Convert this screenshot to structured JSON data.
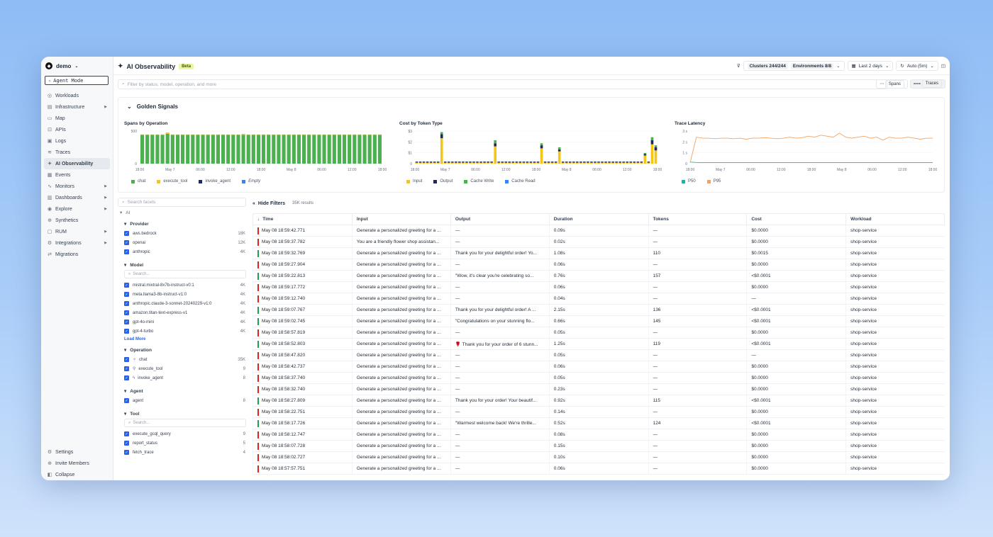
{
  "sidebar": {
    "org": "demo",
    "agent_mode": "Agent Mode",
    "items": [
      {
        "label": "Workloads",
        "icon": "workloads-icon",
        "glyph": "◎"
      },
      {
        "label": "Infrastructure",
        "icon": "infrastructure-icon",
        "glyph": "▤",
        "caret": true
      },
      {
        "label": "Map",
        "icon": "map-icon",
        "glyph": "▭"
      },
      {
        "label": "APIs",
        "icon": "apis-icon",
        "glyph": "⊡"
      },
      {
        "label": "Logs",
        "icon": "logs-icon",
        "glyph": "▣"
      },
      {
        "label": "Traces",
        "icon": "traces-icon",
        "glyph": "≋"
      },
      {
        "label": "AI Observability",
        "icon": "ai-observability-icon",
        "glyph": "✦",
        "active": true
      },
      {
        "label": "Events",
        "icon": "events-icon",
        "glyph": "▦"
      },
      {
        "label": "Monitors",
        "icon": "monitors-icon",
        "glyph": "∿",
        "caret": true
      },
      {
        "label": "Dashboards",
        "icon": "dashboards-icon",
        "glyph": "▥",
        "caret": true
      },
      {
        "label": "Explore",
        "icon": "explore-icon",
        "glyph": "◉",
        "caret": true
      },
      {
        "label": "Synthetics",
        "icon": "synthetics-icon",
        "glyph": "⊕"
      },
      {
        "label": "RUM",
        "icon": "rum-icon",
        "glyph": "▢",
        "caret": true
      },
      {
        "label": "Integrations",
        "icon": "integrations-icon",
        "glyph": "⚙",
        "caret": true
      },
      {
        "label": "Migrations",
        "icon": "migrations-icon",
        "glyph": "⇄"
      }
    ],
    "bottom": [
      {
        "label": "Settings",
        "icon": "settings-icon",
        "glyph": "⚙"
      },
      {
        "label": "Invite Members",
        "icon": "invite-icon",
        "glyph": "⊕"
      },
      {
        "label": "Collapse",
        "icon": "collapse-icon",
        "glyph": "◧"
      }
    ]
  },
  "header": {
    "title": "AI Observability",
    "badge": "Beta",
    "clusters": "Clusters 244/244",
    "environments": "Environments 8/8",
    "range": "Last 2 days",
    "refresh": "Auto (5m)"
  },
  "search": {
    "placeholder": "Filter by status, model, operation, and more"
  },
  "view": {
    "spans": "Spans",
    "traces": "Traces"
  },
  "golden": {
    "title": "Golden Signals",
    "charts": [
      {
        "title": "Spans by Operation",
        "y_ticks": [
          "500",
          "0"
        ],
        "x_ticks": [
          "18:00",
          "May 7",
          "06:00",
          "12:00",
          "18:00",
          "May 8",
          "06:00",
          "12:00",
          "18:00"
        ],
        "legend": [
          {
            "name": "chat",
            "color": "#4caf50"
          },
          {
            "name": "execute_tool",
            "color": "#f5c518"
          },
          {
            "name": "invoke_agent",
            "color": "#1e2a5a"
          },
          {
            "name": "Empty",
            "color": "#3b82f6",
            "italic": true
          }
        ]
      },
      {
        "title": "Cost by Token Type",
        "y_ticks": [
          "$3",
          "$2",
          "$1",
          "0"
        ],
        "x_ticks": [
          "18:00",
          "May 7",
          "06:00",
          "12:00",
          "18:00",
          "May 8",
          "06:00",
          "12:00",
          "18:00"
        ],
        "legend": [
          {
            "name": "Input",
            "color": "#f5c518"
          },
          {
            "name": "Output",
            "color": "#1e2a5a"
          },
          {
            "name": "Cache Write",
            "color": "#4caf50"
          },
          {
            "name": "Cache Read",
            "color": "#3b82f6"
          }
        ]
      },
      {
        "title": "Trace Latency",
        "y_ticks": [
          "3 s",
          "2 s",
          "1 s",
          "0"
        ],
        "x_ticks": [
          "18:00",
          "May 7",
          "06:00",
          "12:00",
          "18:00",
          "May 8",
          "06:00",
          "12:00",
          "18:00"
        ],
        "legend": [
          {
            "name": "P50",
            "color": "#14b8a6"
          },
          {
            "name": "P95",
            "color": "#f4a261"
          }
        ]
      }
    ]
  },
  "chart_data": [
    {
      "type": "bar",
      "title": "Spans by Operation",
      "ylim": [
        0,
        700
      ],
      "stacked": true,
      "series": [
        {
          "name": "chat",
          "values": [
            620,
            620,
            620,
            620,
            620,
            640,
            620,
            620,
            620,
            620,
            620,
            620,
            620,
            620,
            620,
            620,
            620,
            620,
            620,
            620,
            620,
            620,
            620,
            620,
            620,
            620,
            620,
            620,
            620,
            620,
            620,
            620,
            620,
            620,
            620,
            620,
            620,
            620,
            620,
            620,
            620,
            620,
            620,
            620,
            620,
            620,
            620,
            620
          ]
        },
        {
          "name": "execute_tool",
          "values": [
            8,
            8,
            8,
            8,
            8,
            30,
            8,
            8,
            8,
            8,
            8,
            8,
            8,
            8,
            8,
            8,
            8,
            8,
            8,
            8,
            20,
            8,
            8,
            8,
            8,
            8,
            8,
            8,
            8,
            8,
            8,
            8,
            8,
            8,
            8,
            8,
            8,
            8,
            8,
            8,
            8,
            8,
            8,
            8,
            8,
            8,
            8,
            8
          ]
        }
      ]
    },
    {
      "type": "bar",
      "title": "Cost by Token Type",
      "ylim": [
        0,
        3.2
      ],
      "stacked": true,
      "series": [
        {
          "name": "Input",
          "values": [
            0.1,
            0.1,
            0.1,
            0.1,
            0.1,
            0.1,
            0.1,
            2.5,
            0.1,
            0.1,
            0.1,
            0.1,
            0.1,
            0.1,
            0.1,
            0.1,
            0.1,
            0.1,
            0.1,
            0.1,
            0.1,
            0.1,
            1.7,
            0.1,
            0.1,
            0.1,
            0.1,
            0.1,
            0.1,
            0.1,
            0.1,
            0.1,
            0.1,
            0.1,
            0.1,
            1.5,
            0.1,
            0.1,
            0.1,
            0.1,
            1.2,
            0.1,
            0.1,
            0.1,
            0.1,
            0.1,
            0.1,
            0.1,
            0.1,
            0.1,
            0.1,
            0.1,
            0.1,
            0.1,
            0.1,
            0.1,
            0.1,
            0.1,
            0.1,
            0.1,
            0.1,
            0.1,
            0.1,
            0.1,
            0.8,
            0.1,
            1.9,
            1.3
          ]
        },
        {
          "name": "Output",
          "values": [
            0.1,
            0.1,
            0.1,
            0.1,
            0.1,
            0.1,
            0.1,
            0.4,
            0.1,
            0.1,
            0.1,
            0.1,
            0.1,
            0.1,
            0.1,
            0.1,
            0.1,
            0.1,
            0.1,
            0.1,
            0.1,
            0.1,
            0.3,
            0.1,
            0.1,
            0.1,
            0.1,
            0.1,
            0.1,
            0.1,
            0.1,
            0.1,
            0.1,
            0.1,
            0.1,
            0.3,
            0.1,
            0.1,
            0.1,
            0.1,
            0.2,
            0.1,
            0.1,
            0.1,
            0.1,
            0.1,
            0.1,
            0.1,
            0.1,
            0.1,
            0.1,
            0.1,
            0.1,
            0.1,
            0.1,
            0.1,
            0.1,
            0.1,
            0.1,
            0.1,
            0.1,
            0.1,
            0.1,
            0.1,
            0.15,
            0.1,
            0.4,
            0.3
          ]
        },
        {
          "name": "Cache Write",
          "values": [
            0,
            0,
            0,
            0,
            0,
            0,
            0,
            0.2,
            0,
            0,
            0,
            0,
            0,
            0,
            0,
            0,
            0,
            0,
            0,
            0,
            0,
            0,
            0.3,
            0,
            0,
            0,
            0,
            0,
            0,
            0,
            0,
            0,
            0,
            0,
            0,
            0.2,
            0,
            0,
            0,
            0,
            0.2,
            0,
            0,
            0,
            0,
            0,
            0,
            0,
            0,
            0,
            0,
            0,
            0,
            0,
            0,
            0,
            0,
            0,
            0,
            0,
            0,
            0,
            0,
            0,
            0.1,
            0,
            0.3,
            0.2
          ]
        }
      ]
    },
    {
      "type": "line",
      "title": "Trace Latency",
      "ylim": [
        0,
        3.2
      ],
      "series": [
        {
          "name": "P50",
          "values": [
            0.15,
            0.12,
            0.1,
            0.1,
            0.1,
            0.1,
            0.1,
            0.1,
            0.1,
            0.1,
            0.1,
            0.1,
            0.1,
            0.1,
            0.1,
            0.1,
            0.1,
            0.1,
            0.1,
            0.1,
            0.1,
            0.1,
            0.1,
            0.1,
            0.1,
            0.1,
            0.1,
            0.1,
            0.1,
            0.1,
            0.1,
            0.1,
            0.1,
            0.1,
            0.1,
            0.1,
            0.1,
            0.1,
            0.1,
            0.1
          ]
        },
        {
          "name": "P95",
          "values": [
            0.1,
            2.6,
            2.5,
            2.5,
            2.45,
            2.5,
            2.5,
            2.45,
            2.5,
            2.4,
            2.5,
            2.5,
            2.55,
            2.5,
            2.45,
            2.5,
            2.6,
            2.5,
            2.55,
            2.7,
            2.6,
            2.8,
            2.7,
            2.6,
            3.0,
            2.6,
            2.5,
            2.6,
            2.7,
            2.5,
            2.6,
            2.3,
            2.6,
            2.5,
            2.5,
            2.6,
            2.5,
            2.4,
            2.5,
            2.5
          ]
        }
      ]
    }
  ],
  "facets": {
    "search": "Search facets",
    "root": "AI",
    "provider": {
      "title": "Provider",
      "items": [
        {
          "name": "aws.bedrock",
          "count": "18K"
        },
        {
          "name": "openai",
          "count": "12K"
        },
        {
          "name": "anthropic",
          "count": "4K"
        }
      ]
    },
    "model": {
      "title": "Model",
      "search": "Search...",
      "items": [
        {
          "name": "mistral.mixtral-8x7b-instruct-v0:1",
          "count": "4K"
        },
        {
          "name": "meta.llama3-8b-instruct-v1:0",
          "count": "4K"
        },
        {
          "name": "anthropic.claude-3-sonnet-20240229-v1:0",
          "count": "4K"
        },
        {
          "name": "amazon.titan-text-express-v1",
          "count": "4K"
        },
        {
          "name": "gpt-4o-mini",
          "count": "4K"
        },
        {
          "name": "gpt-4-turbo",
          "count": "4K"
        }
      ],
      "load_more": "Load More"
    },
    "operation": {
      "title": "Operation",
      "items": [
        {
          "name": "chat",
          "count": "35K",
          "glyph": "✧"
        },
        {
          "name": "execute_tool",
          "count": "9",
          "glyph": "⚲"
        },
        {
          "name": "invoke_agent",
          "count": "8",
          "glyph": "ϟ"
        }
      ]
    },
    "agent": {
      "title": "Agent",
      "items": [
        {
          "name": "agent",
          "count": "8"
        }
      ]
    },
    "tool": {
      "title": "Tool",
      "search": "Search...",
      "items": [
        {
          "name": "execute_gcql_query",
          "count": "9"
        },
        {
          "name": "report_status",
          "count": "5"
        },
        {
          "name": "fetch_trace",
          "count": "4"
        }
      ]
    }
  },
  "results": {
    "hide_filters": "Hide Filters",
    "count": "35K results",
    "columns": [
      "Time",
      "Input",
      "Output",
      "Duration",
      "Tokens",
      "Cost",
      "Workload"
    ],
    "rows": [
      [
        "May 08 18:59:42.771",
        "Generate a personalized greeting for a ...",
        "—",
        "0.09s",
        "—",
        "$0.0000",
        "shop-service",
        "#dc2626"
      ],
      [
        "May 08 18:59:37.782",
        "You are a friendly flower shop assistan...",
        "—",
        "0.02s",
        "—",
        "$0.0000",
        "shop-service",
        "#dc2626"
      ],
      [
        "May 08 18:59:32.769",
        "Generate a personalized greeting for a ...",
        "Thank you for your delightful order! Yo...",
        "1.08s",
        "110",
        "$0.0015",
        "shop-service",
        "#16a34a"
      ],
      [
        "May 08 18:59:27.904",
        "Generate a personalized greeting for a ...",
        "—",
        "0.06s",
        "—",
        "$0.0000",
        "shop-service",
        "#dc2626"
      ],
      [
        "May 08 18:59:22.813",
        "Generate a personalized greeting for a ...",
        "\"Wow, it's clear you're celebrating so...",
        "0.76s",
        "157",
        "<$0.0001",
        "shop-service",
        "#16a34a"
      ],
      [
        "May 08 18:59:17.772",
        "Generate a personalized greeting for a ...",
        "—",
        "0.06s",
        "—",
        "$0.0000",
        "shop-service",
        "#dc2626"
      ],
      [
        "May 08 18:59:12.740",
        "Generate a personalized greeting for a ...",
        "—",
        "0.04s",
        "—",
        "—",
        "shop-service",
        "#dc2626"
      ],
      [
        "May 08 18:59:07.767",
        "Generate a personalized greeting for a ...",
        "Thank you for your delightful order! A ...",
        "2.15s",
        "136",
        "<$0.0001",
        "shop-service",
        "#16a34a"
      ],
      [
        "May 08 18:59:02.745",
        "Generate a personalized greeting for a ...",
        "\"Congratulations on your stunning flo...",
        "0.66s",
        "145",
        "<$0.0001",
        "shop-service",
        "#16a34a"
      ],
      [
        "May 08 18:58:57.819",
        "Generate a personalized greeting for a ...",
        "—",
        "0.05s",
        "—",
        "$0.0000",
        "shop-service",
        "#dc2626"
      ],
      [
        "May 08 18:58:52.803",
        "Generate a personalized greeting for a ...",
        "🌹 Thank you for your order of 6 stunn...",
        "1.25s",
        "119",
        "<$0.0001",
        "shop-service",
        "#16a34a"
      ],
      [
        "May 08 18:58:47.820",
        "Generate a personalized greeting for a ...",
        "—",
        "0.05s",
        "—",
        "—",
        "shop-service",
        "#dc2626"
      ],
      [
        "May 08 18:58:42.737",
        "Generate a personalized greeting for a ...",
        "—",
        "0.06s",
        "—",
        "$0.0000",
        "shop-service",
        "#dc2626"
      ],
      [
        "May 08 18:58:37.740",
        "Generate a personalized greeting for a ...",
        "—",
        "0.05s",
        "—",
        "$0.0000",
        "shop-service",
        "#dc2626"
      ],
      [
        "May 08 18:58:32.740",
        "Generate a personalized greeting for a ...",
        "—",
        "0.23s",
        "—",
        "$0.0000",
        "shop-service",
        "#dc2626"
      ],
      [
        "May 08 18:58:27.809",
        "Generate a personalized greeting for a ...",
        "Thank you for your order! Your beautif...",
        "0.92s",
        "115",
        "<$0.0001",
        "shop-service",
        "#16a34a"
      ],
      [
        "May 08 18:58:22.751",
        "Generate a personalized greeting for a ...",
        "—",
        "0.14s",
        "—",
        "$0.0000",
        "shop-service",
        "#dc2626"
      ],
      [
        "May 08 18:58:17.726",
        "Generate a personalized greeting for a ...",
        "\"Warmest welcome back! We're thrille...",
        "0.52s",
        "124",
        "<$0.0001",
        "shop-service",
        "#16a34a"
      ],
      [
        "May 08 18:58:12.747",
        "Generate a personalized greeting for a ...",
        "—",
        "0.08s",
        "—",
        "$0.0000",
        "shop-service",
        "#dc2626"
      ],
      [
        "May 08 18:58:07.728",
        "Generate a personalized greeting for a ...",
        "—",
        "0.15s",
        "—",
        "$0.0000",
        "shop-service",
        "#dc2626"
      ],
      [
        "May 08 18:58:02.727",
        "Generate a personalized greeting for a ...",
        "—",
        "0.10s",
        "—",
        "$0.0000",
        "shop-service",
        "#dc2626"
      ],
      [
        "May 08 18:57:57.751",
        "Generate a personalized greeting for a ...",
        "—",
        "0.06s",
        "—",
        "$0.0000",
        "shop-service",
        "#dc2626"
      ]
    ]
  }
}
